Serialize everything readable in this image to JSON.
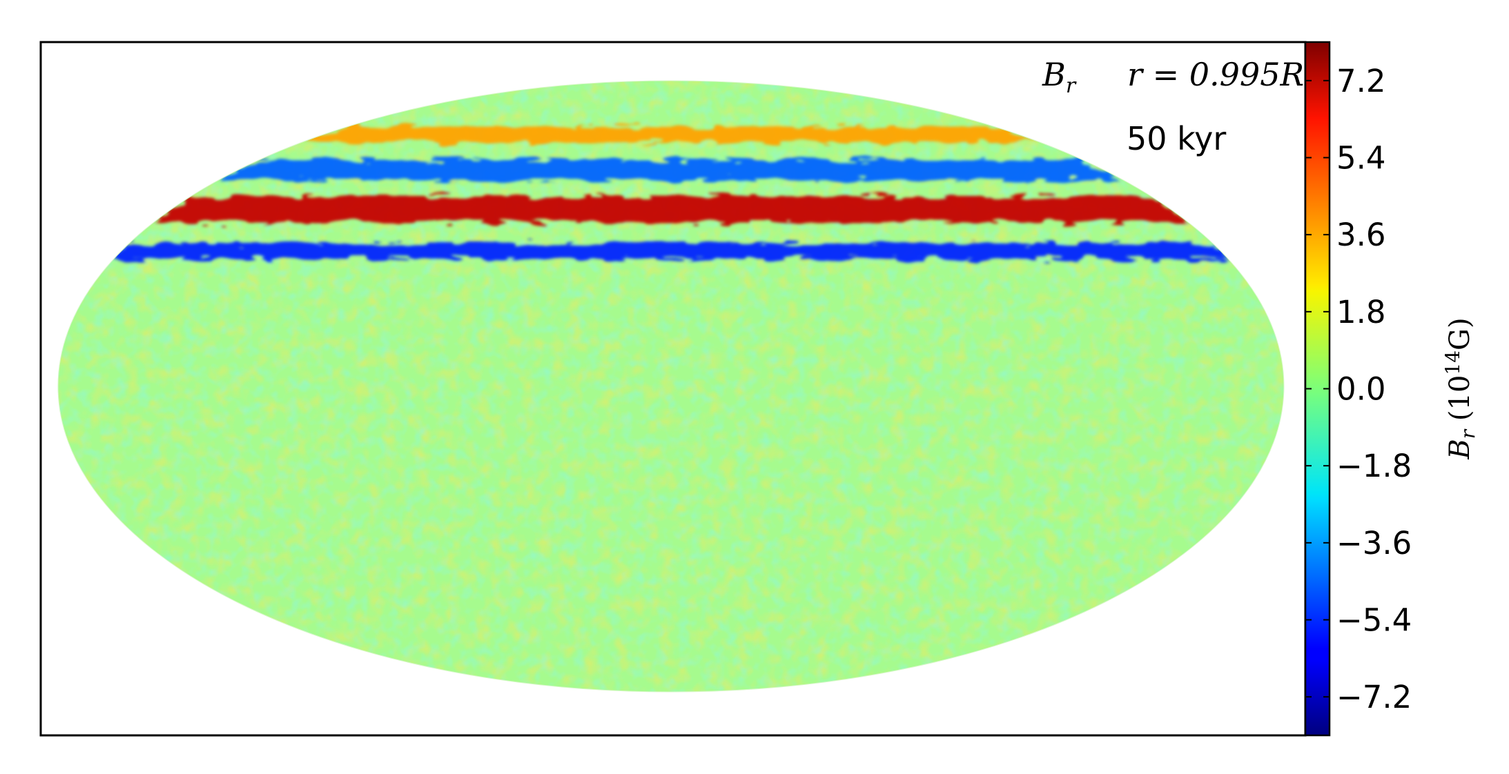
{
  "chart_data": {
    "type": "heatmap",
    "projection": "Mollweide (full sphere, elliptical map)",
    "annotation": {
      "quantity": "B",
      "quantity_sub": "r",
      "radius_lhs": "r = 0.995R",
      "radius_sub": "*",
      "time": "50 kyr"
    },
    "colorbar": {
      "colormap": "jet",
      "label": "B",
      "label_sub": "r",
      "label_units_open": " (10",
      "label_units_exp": "14",
      "label_units_close": "G)",
      "range": [
        -8.1,
        8.1
      ],
      "ticks": [
        7.2,
        5.4,
        3.6,
        1.8,
        0.0,
        -1.8,
        -3.6,
        -5.4,
        -7.2
      ],
      "tick_labels": [
        "7.2",
        "5.4",
        "3.6",
        "1.8",
        "0.0",
        "−1.8",
        "−3.6",
        "−5.4",
        "−7.2"
      ]
    },
    "bands": [
      {
        "description": "positive high-latitude ring",
        "latitude_deg": 66,
        "value": 3.5
      },
      {
        "description": "negative ring",
        "latitude_deg": 55,
        "value": -4.5
      },
      {
        "description": "strong positive toroidal band",
        "latitude_deg": 44,
        "value": 7.0
      },
      {
        "description": "negative ring",
        "latitude_deg": 33,
        "value": -5.5
      }
    ],
    "background_value": 0.3
  }
}
